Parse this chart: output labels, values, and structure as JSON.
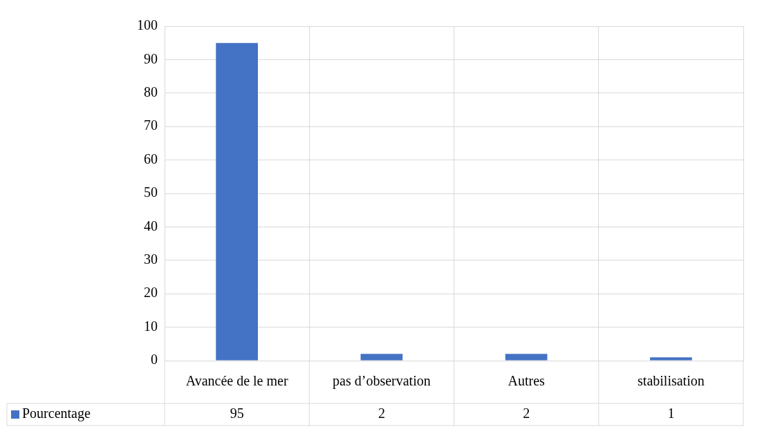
{
  "chart_data": {
    "type": "bar",
    "categories": [
      "Avancée de le mer",
      "pas d’observation",
      "Autres",
      "stabilisation"
    ],
    "series": [
      {
        "name": "Pourcentage",
        "color": "#4472c4",
        "values": [
          95,
          2,
          2,
          1
        ]
      }
    ],
    "ylim": [
      0,
      100
    ],
    "yticks": [
      0,
      10,
      20,
      30,
      40,
      50,
      60,
      70,
      80,
      90,
      100
    ],
    "grid": true,
    "legend": "bottom",
    "data_labels": true
  }
}
